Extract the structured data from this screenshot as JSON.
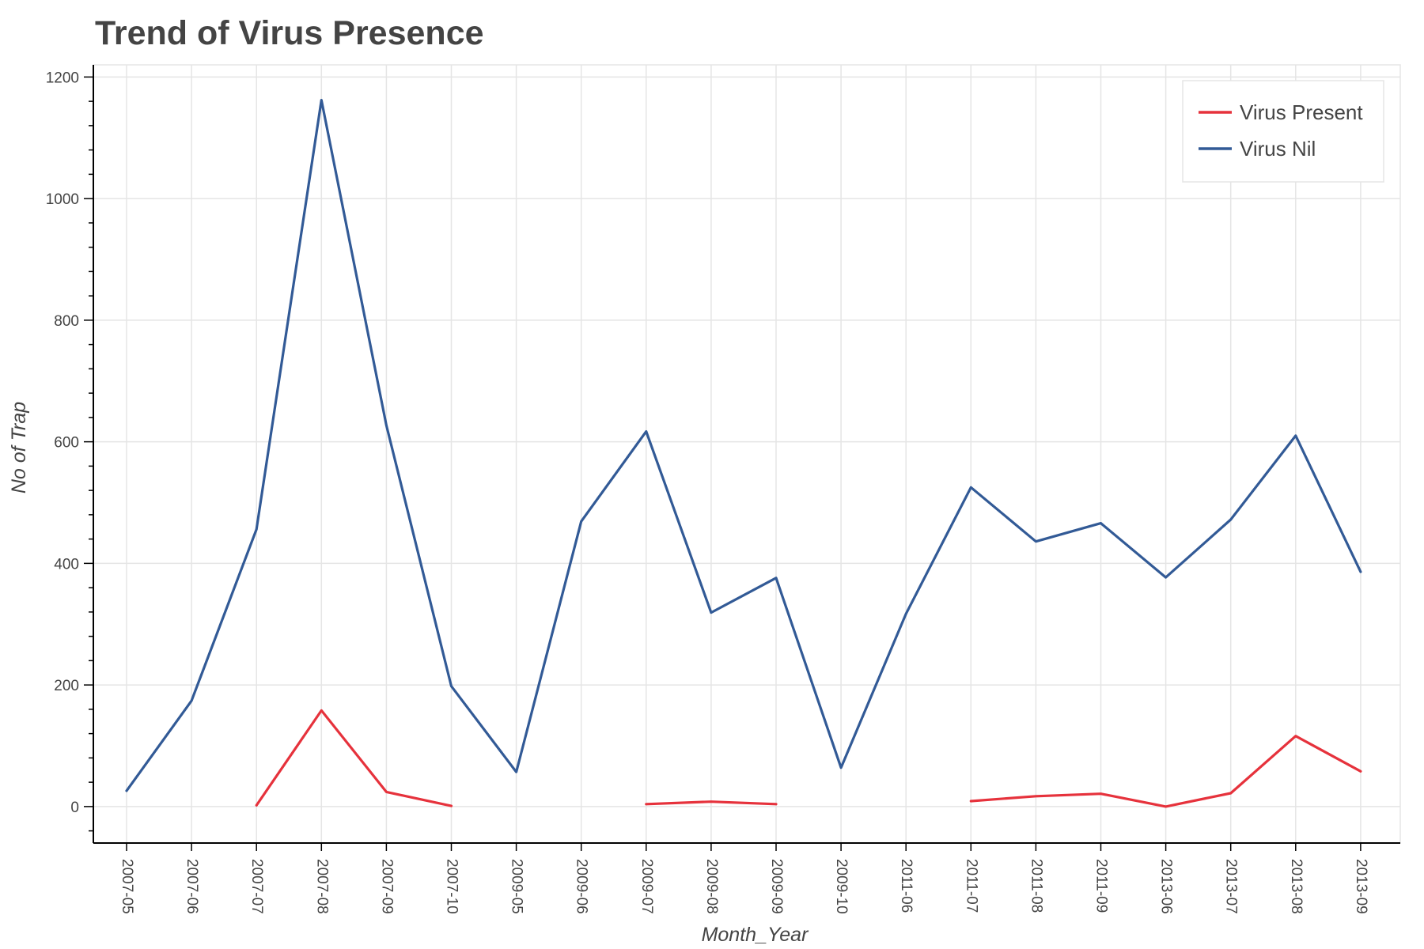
{
  "chart_data": {
    "type": "line",
    "title": "Trend of Virus Presence",
    "xlabel": "Month_Year",
    "ylabel": "No of Trap",
    "categories": [
      "2007-05",
      "2007-06",
      "2007-07",
      "2007-08",
      "2007-09",
      "2007-10",
      "2009-05",
      "2009-06",
      "2009-07",
      "2009-08",
      "2009-09",
      "2009-10",
      "2011-06",
      "2011-07",
      "2011-08",
      "2011-09",
      "2013-06",
      "2013-07",
      "2013-08",
      "2013-09"
    ],
    "ylim": [
      -60,
      1220
    ],
    "yticks": [
      0,
      200,
      400,
      600,
      800,
      1000,
      1200
    ],
    "grid": true,
    "legend_position": "top-right",
    "series": [
      {
        "name": "Virus Present",
        "color": "#e6323c",
        "values": [
          null,
          null,
          2,
          158,
          24,
          1,
          null,
          null,
          4,
          8,
          4,
          null,
          null,
          9,
          17,
          21,
          0,
          22,
          116,
          58
        ]
      },
      {
        "name": "Virus Nil",
        "color": "#325a96",
        "values": [
          26,
          174,
          456,
          1162,
          627,
          198,
          57,
          469,
          617,
          319,
          376,
          64,
          317,
          525,
          436,
          466,
          377,
          472,
          610,
          386
        ]
      }
    ]
  }
}
